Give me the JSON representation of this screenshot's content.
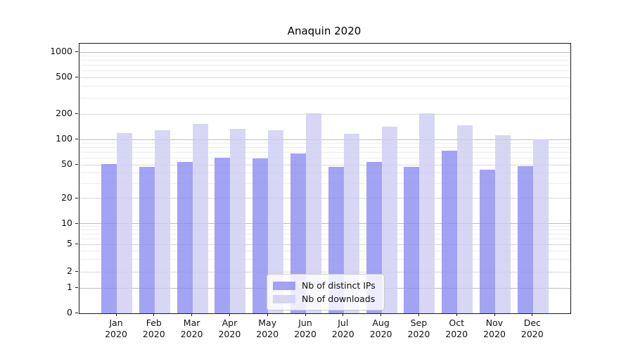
{
  "title": "Anaquin 2020",
  "legend": {
    "items": [
      {
        "label": "Nb of distinct IPs",
        "color": "rgba(140,140,240,0.8)"
      },
      {
        "label": "Nb of downloads",
        "color": "rgba(205,205,242,0.8)"
      }
    ]
  },
  "axes": {
    "y_tick_labels": [
      "1000",
      "500",
      "200",
      "100",
      "50",
      "20",
      "10",
      "5",
      "2",
      "1",
      "0"
    ],
    "x_year": "2020",
    "x_months": [
      "Jan",
      "Feb",
      "Mar",
      "Apr",
      "May",
      "Jun",
      "Jul",
      "Aug",
      "Sep",
      "Oct",
      "Nov",
      "Dec"
    ]
  },
  "chart_data": {
    "type": "bar",
    "title": "Anaquin 2020",
    "categories": [
      "Jan 2020",
      "Feb 2020",
      "Mar 2020",
      "Apr 2020",
      "May 2020",
      "Jun 2020",
      "Jul 2020",
      "Aug 2020",
      "Sep 2020",
      "Oct 2020",
      "Nov 2020",
      "Dec 2020"
    ],
    "series": [
      {
        "name": "Nb of distinct IPs",
        "color": "rgba(140,140,240,0.8)",
        "values": [
          51,
          47,
          54,
          61,
          59,
          68,
          47,
          54,
          47,
          74,
          44,
          48
        ]
      },
      {
        "name": "Nb of downloads",
        "color": "rgba(205,205,242,0.8)",
        "values": [
          118,
          130,
          153,
          133,
          128,
          205,
          116,
          142,
          205,
          148,
          113,
          100
        ]
      }
    ],
    "yscale": "symlog",
    "ylim": [
      0,
      1000
    ],
    "yticks": [
      0,
      1,
      2,
      5,
      10,
      20,
      50,
      100,
      200,
      500,
      1000
    ],
    "grid": true,
    "legend_position": "lower center"
  }
}
